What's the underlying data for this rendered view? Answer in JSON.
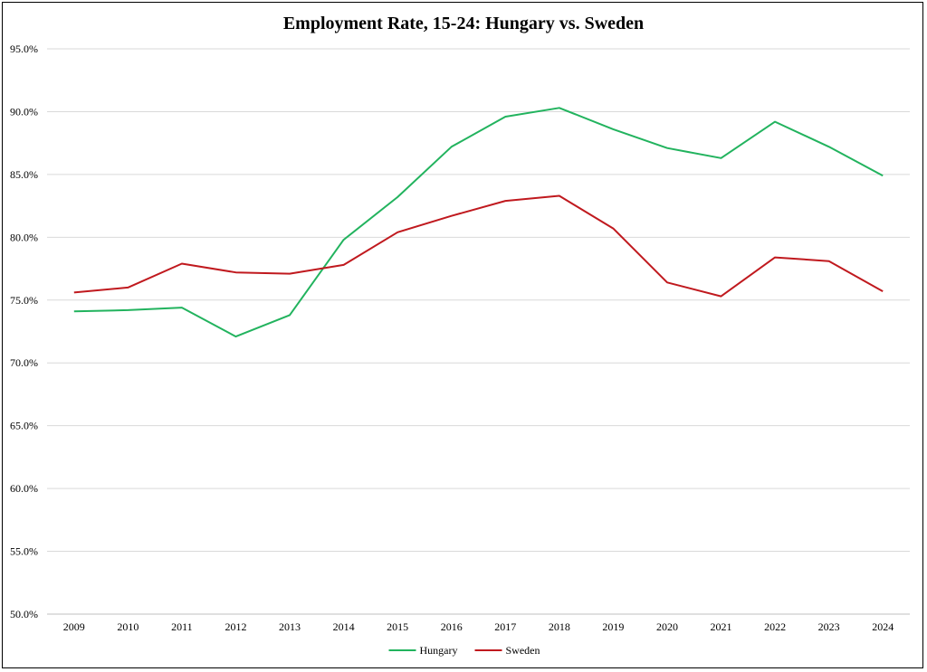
{
  "chart_data": {
    "type": "line",
    "title": "Employment Rate, 15-24: Hungary vs. Sweden",
    "xlabel": "",
    "ylabel": "",
    "categories": [
      "2009",
      "2010",
      "2011",
      "2012",
      "2013",
      "2014",
      "2015",
      "2016",
      "2017",
      "2018",
      "2019",
      "2020",
      "2021",
      "2022",
      "2023",
      "2024"
    ],
    "ylim": [
      50,
      95
    ],
    "yticks": [
      "50.0%",
      "55.0%",
      "60.0%",
      "65.0%",
      "70.0%",
      "75.0%",
      "80.0%",
      "85.0%",
      "90.0%",
      "95.0%"
    ],
    "grid": true,
    "legend_position": "bottom",
    "series": [
      {
        "name": "Hungary",
        "color": "#22b35e",
        "values": [
          74.1,
          74.2,
          74.4,
          72.1,
          73.8,
          79.8,
          83.2,
          87.2,
          89.6,
          90.3,
          88.6,
          87.1,
          86.3,
          89.2,
          87.2,
          84.9
        ]
      },
      {
        "name": "Sweden",
        "color": "#c0191e",
        "values": [
          75.6,
          76.0,
          77.9,
          77.2,
          77.1,
          77.8,
          80.4,
          81.7,
          82.9,
          83.3,
          80.7,
          76.4,
          75.3,
          78.4,
          78.1,
          75.7
        ]
      }
    ]
  }
}
